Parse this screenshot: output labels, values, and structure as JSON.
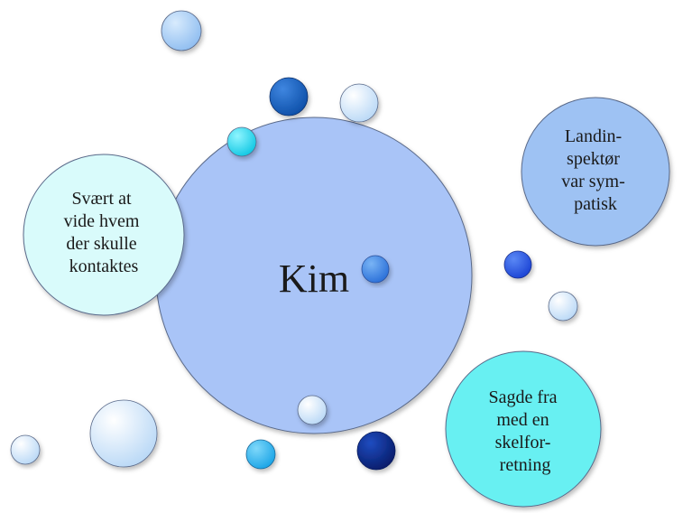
{
  "center": {
    "label": "Kim",
    "color": "#a9c4f7"
  },
  "nodes": [
    {
      "id": "left",
      "lines": [
        "Svært at",
        "vide hvem",
        "der skulle",
        "kontaktes"
      ],
      "color": "#d9fbfb"
    },
    {
      "id": "right",
      "lines": [
        "Landin-",
        "spektør",
        "var sym-",
        "patisk"
      ],
      "color": "#9ec2f3"
    },
    {
      "id": "bottom-right",
      "lines": [
        "Sagde fra",
        "med en",
        "skelfor-",
        "retning"
      ],
      "color": "#67f0f2"
    }
  ],
  "colors": {
    "stroke": "#5a6a8a",
    "light_blue": "#a8cdf5",
    "pale_blue": "#d3e6fb",
    "royal_blue": "#1a66c9",
    "navy": "#0b2a8a",
    "cyan": "#2ad8ee",
    "sky": "#2fb6ee",
    "mid_blue": "#3a86e8",
    "bright_blue": "#2456e6"
  }
}
